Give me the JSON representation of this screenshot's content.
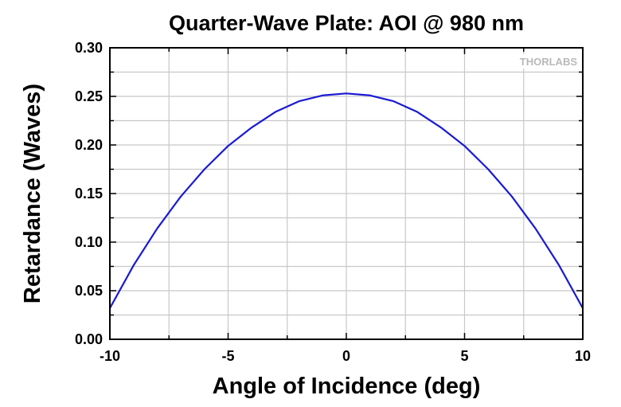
{
  "chart_data": {
    "type": "line",
    "title": "Quarter-Wave Plate: AOI @ 980 nm",
    "xlabel": "Angle of Incidence (deg)",
    "ylabel": "Retardance (Waves)",
    "xlim": [
      -10,
      10
    ],
    "ylim": [
      0,
      0.3
    ],
    "x_ticks": [
      "-10",
      "-5",
      "0",
      "5",
      "10"
    ],
    "y_ticks": [
      "0.00",
      "0.05",
      "0.10",
      "0.15",
      "0.20",
      "0.25",
      "0.30"
    ],
    "grid": true,
    "series": [
      {
        "color": "#1a1ad4",
        "x": [
          -10,
          -9,
          -8,
          -7,
          -6,
          -5,
          -4,
          -3,
          -2,
          -1,
          0,
          1,
          2,
          3,
          4,
          5,
          6,
          7,
          8,
          9,
          10
        ],
        "y": [
          0.032,
          0.076,
          0.114,
          0.147,
          0.175,
          0.199,
          0.218,
          0.234,
          0.245,
          0.251,
          0.253,
          0.251,
          0.245,
          0.234,
          0.218,
          0.199,
          0.175,
          0.147,
          0.114,
          0.076,
          0.032
        ]
      }
    ]
  },
  "logo": {
    "text": "THORLABS"
  }
}
